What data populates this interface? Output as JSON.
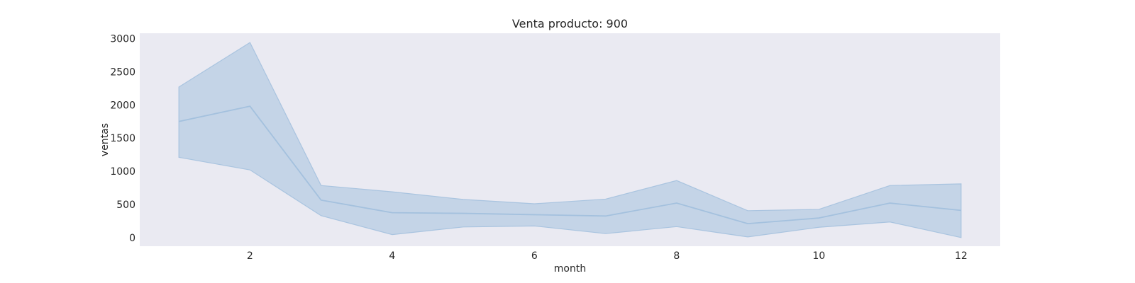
{
  "chart_data": {
    "type": "line",
    "title": "Venta producto: 900",
    "xlabel": "month",
    "ylabel": "ventas",
    "xlim": [
      0.45,
      12.55
    ],
    "ylim": [
      -130,
      3080
    ],
    "xticks": [
      2,
      4,
      6,
      8,
      10,
      12
    ],
    "yticks": [
      0,
      500,
      1000,
      1500,
      2000,
      2500,
      3000
    ],
    "grid": false,
    "series": [
      {
        "x": [
          1,
          2,
          3,
          4,
          5,
          6,
          7,
          8,
          9,
          10,
          11,
          12
        ],
        "y": [
          1750,
          1980,
          565,
          375,
          365,
          345,
          325,
          520,
          210,
          295,
          520,
          410
        ],
        "lower": [
          1210,
          1020,
          330,
          45,
          160,
          175,
          60,
          165,
          10,
          155,
          235,
          0
        ],
        "upper": [
          2270,
          2940,
          785,
          690,
          575,
          510,
          580,
          860,
          405,
          425,
          785,
          810
        ]
      }
    ],
    "colors": {
      "plot_background": "#EAEAF2",
      "line": "#A4C1DE",
      "band": "#A4C1DE",
      "text": "#262626"
    }
  }
}
